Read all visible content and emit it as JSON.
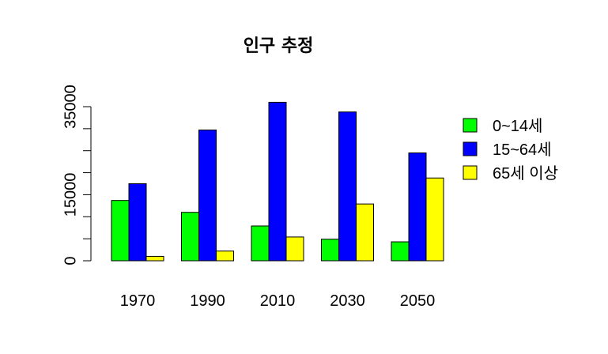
{
  "chart_data": {
    "type": "bar",
    "title": "인구 추정",
    "xlabel": "",
    "ylabel": "",
    "categories": [
      "1970",
      "1990",
      "2010",
      "2030",
      "2050"
    ],
    "series": [
      {
        "name": "0~14세",
        "color": "#00ff00",
        "values": [
          13700,
          11000,
          7900,
          4900,
          4300
        ]
      },
      {
        "name": "15~64세",
        "color": "#0000ff",
        "values": [
          17500,
          29700,
          36000,
          33800,
          24500
        ]
      },
      {
        "name": "65세 이상",
        "color": "#ffff00",
        "values": [
          1000,
          2200,
          5400,
          12900,
          18800
        ]
      }
    ],
    "ylim": [
      0,
      35000
    ],
    "yticks": [
      0,
      5000,
      10000,
      15000,
      20000,
      25000,
      30000,
      35000
    ],
    "yticklabels": [
      "0",
      "",
      "",
      "15000",
      "",
      "",
      "",
      "35000"
    ],
    "legend": "right",
    "grid": false
  }
}
